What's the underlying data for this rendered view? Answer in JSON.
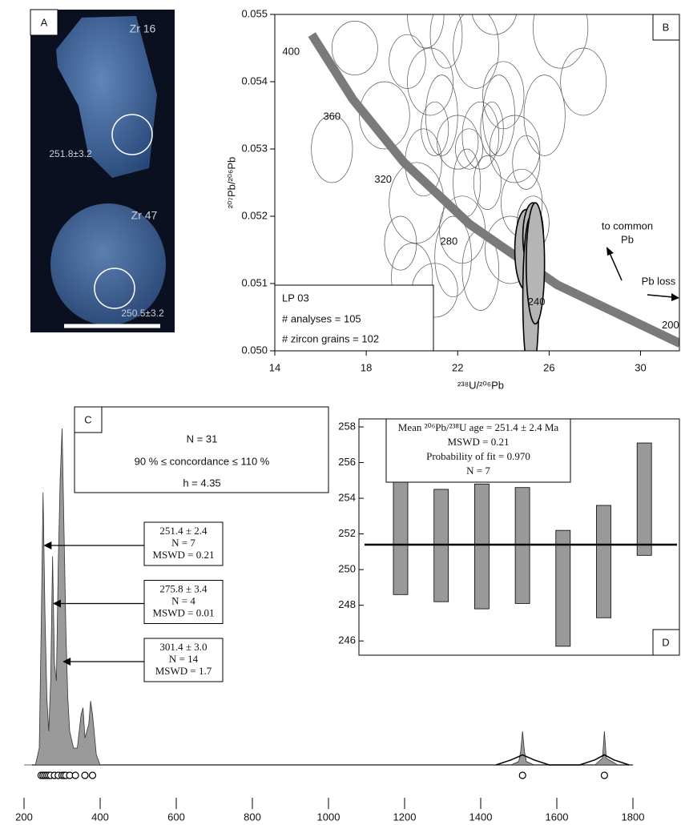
{
  "image_panel": {
    "panel_label": "A",
    "grains": [
      {
        "name": "Zr 16",
        "age": "251.8±3.2"
      },
      {
        "name": "Zr 47",
        "age": "250.5±3.2"
      }
    ]
  },
  "chart_data": [
    {
      "type": "concordia",
      "panel_label": "B",
      "x_label": "²³⁸U/²⁰⁶Pb",
      "y_label": "²⁰⁷Pb/²⁰⁶Pb",
      "xlim": [
        14,
        31.7
      ],
      "ylim": [
        0.05,
        0.055
      ],
      "xticks": [
        14,
        18,
        22,
        26,
        30
      ],
      "yticks": [
        {
          "value": 0.05,
          "label": "0.050"
        },
        0.051,
        0.052,
        0.053,
        0.054,
        0.055
      ],
      "concordia": {
        "color": "#7a7a7a",
        "x": [
          31.73,
          26.36,
          22.53,
          19.65,
          17.41,
          15.62
        ],
        "values": [
          0.05011,
          0.05098,
          0.05188,
          0.0528,
          0.05374,
          0.0547
        ],
        "point_labels": [
          "200",
          "240",
          "280",
          "320",
          "360",
          "400"
        ]
      },
      "ellipses": {
        "color": "#555555",
        "x": [
          20.5,
          21.0,
          21.3,
          20.8,
          22.0,
          22.5,
          23.0,
          23.5,
          23.8,
          24.5,
          25.0,
          24.0,
          22.8,
          21.5,
          19.8,
          20.2,
          23.3,
          24.8,
          25.3,
          22.2,
          21.8,
          18.8,
          17.5,
          16.5,
          26.5,
          27.5,
          20.0,
          21.0,
          23.0,
          24.3,
          19.5,
          22.4,
          25.8,
          20.6,
          23.6
        ],
        "values": [
          0.0528,
          0.0533,
          0.0535,
          0.054,
          0.0531,
          0.053,
          0.0532,
          0.0533,
          0.0535,
          0.053,
          0.0528,
          0.0538,
          0.0545,
          0.0547,
          0.0543,
          0.0522,
          0.0525,
          0.0522,
          0.0519,
          0.0518,
          0.0514,
          0.0535,
          0.0545,
          0.053,
          0.0548,
          0.054,
          0.0511,
          0.0509,
          0.0512,
          0.0515,
          0.0516,
          0.0525,
          0.0535,
          0.055,
          0.0551
        ],
        "x_err": [
          0.8,
          0.6,
          0.7,
          1.0,
          0.9,
          0.6,
          0.8,
          0.5,
          0.7,
          1.1,
          0.6,
          0.9,
          1.0,
          0.7,
          0.8,
          1.2,
          0.6,
          0.9,
          0.7,
          1.0,
          0.8,
          1.1,
          1.0,
          0.9,
          1.2,
          1.0,
          0.9,
          1.0,
          0.8,
          1.1,
          0.7,
          0.6,
          0.9,
          0.8,
          1.0
        ],
        "y_err": [
          0.0005,
          0.0004,
          0.0006,
          0.0005,
          0.0004,
          0.0003,
          0.0005,
          0.0004,
          0.0006,
          0.0005,
          0.0004,
          0.0005,
          0.0006,
          0.0005,
          0.0004,
          0.0006,
          0.0004,
          0.0005,
          0.0004,
          0.0005,
          0.0006,
          0.0005,
          0.0004,
          0.0005,
          0.0006,
          0.0005,
          0.0005,
          0.0004,
          0.0006,
          0.0005,
          0.0004,
          0.0005,
          0.0006,
          0.0005,
          0.0004
        ]
      },
      "shaded_ellipses": {
        "color": "#b5b5b5",
        "x": [
          25.0,
          25.3,
          25.2,
          25.4
        ],
        "values": [
          0.0515,
          0.0517,
          0.0508,
          0.0513
        ],
        "x_err": [
          0.5,
          0.45,
          0.35,
          0.4
        ],
        "y_err": [
          0.0006,
          0.0005,
          0.0012,
          0.0009
        ]
      },
      "info_box": [
        "LP 03",
        "# analyses = 105",
        "# zircon grains = 102"
      ],
      "annotations": [
        "to common",
        "Pb",
        "Pb loss"
      ]
    },
    {
      "type": "kde",
      "panel_label": "C",
      "xlim": [
        200,
        1800
      ],
      "ylim": [
        0,
        100
      ],
      "xticks": [
        200,
        400,
        600,
        800,
        1000,
        1200,
        1400,
        1600,
        1800
      ],
      "stats": [
        "N = 31",
        "90 % ≤ concordance ≤ 110 %",
        "h = 4.35"
      ],
      "kde": {
        "color": "#9a9a9a",
        "x": [
          200,
          230,
          240,
          245,
          250,
          255,
          260,
          265,
          270,
          275,
          280,
          285,
          290,
          295,
          300,
          305,
          310,
          315,
          320,
          330,
          340,
          350,
          355,
          360,
          370,
          375,
          380,
          390,
          400,
          420,
          1480,
          1500,
          1505,
          1510,
          1515,
          1520,
          1540,
          1700,
          1720,
          1725,
          1730,
          1760,
          1800
        ],
        "values": [
          0,
          0,
          5,
          40,
          81,
          45,
          20,
          10,
          25,
          62,
          30,
          25,
          60,
          85,
          100,
          70,
          40,
          20,
          10,
          5,
          5,
          15,
          17,
          8,
          12,
          19,
          15,
          3,
          0,
          0,
          0,
          1,
          4,
          10,
          4,
          1,
          0,
          0,
          2,
          10,
          2,
          0,
          0
        ]
      },
      "pdp": {
        "color": "#000000",
        "x": [
          1440,
          1480,
          1510,
          1540,
          1580,
          1660,
          1700,
          1725,
          1750,
          1790
        ],
        "values": [
          0,
          1.5,
          3,
          1.5,
          0,
          0,
          1.5,
          3,
          1.5,
          0
        ]
      },
      "ages": [
        245,
        250,
        255,
        260,
        265,
        270,
        280,
        290,
        300,
        305,
        310,
        320,
        335,
        360,
        380,
        1510,
        1725
      ],
      "peaks": [
        {
          "age": 251.4,
          "lines": [
            "251.4 ± 2.4",
            "N = 7",
            "MSWD = 0.21"
          ]
        },
        {
          "age": 275.8,
          "lines": [
            "275.8 ± 3.4",
            "N = 4",
            "MSWD = 0.01"
          ]
        },
        {
          "age": 301.4,
          "lines": [
            "301.4 ± 3.0",
            "N = 14",
            "MSWD = 1.7"
          ]
        }
      ]
    },
    {
      "type": "weighted_mean",
      "panel_label": "D",
      "ylim": [
        245.2,
        258.45
      ],
      "yticks": [
        246,
        248,
        250,
        252,
        254,
        256,
        258
      ],
      "values": [
        251.75,
        251.35,
        251.3,
        251.35,
        248.95,
        250.45,
        253.95
      ],
      "errors": [
        3.15,
        3.15,
        3.5,
        3.25,
        3.25,
        3.15,
        3.15
      ],
      "color": "#999999",
      "mean": 251.4,
      "stats": [
        "Mean ²⁰⁶Pb/²³⁸U age = 251.4 ± 2.4 Ma",
        "MSWD = 0.21",
        "Probability of fit = 0.970",
        "N = 7"
      ]
    }
  ]
}
